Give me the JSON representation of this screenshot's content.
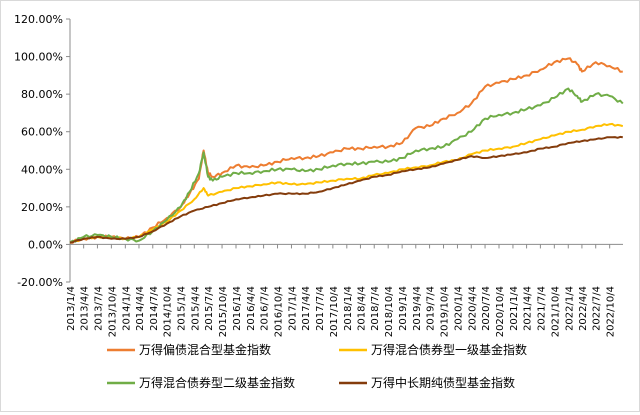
{
  "chart_data": {
    "type": "line",
    "ylim": [
      -0.2,
      1.2
    ],
    "y_ticks": [
      "120.00%",
      "100.00%",
      "80.00%",
      "60.00%",
      "40.00%",
      "20.00%",
      "0.00%",
      "-20.00%"
    ],
    "x_ticks": [
      "2013/1/4",
      "2013/4/4",
      "2013/7/4",
      "2013/10/4",
      "2014/1/4",
      "2014/4/4",
      "2014/7/4",
      "2014/10/4",
      "2015/1/4",
      "2015/4/4",
      "2015/7/4",
      "2015/10/4",
      "2016/1/4",
      "2016/4/4",
      "2016/7/4",
      "2016/10/4",
      "2017/1/4",
      "2017/4/4",
      "2017/7/4",
      "2017/10/4",
      "2018/1/4",
      "2018/4/4",
      "2018/7/4",
      "2018/10/4",
      "2019/1/4",
      "2019/4/4",
      "2019/7/4",
      "2019/10/4",
      "2020/1/4",
      "2020/4/4",
      "2020/7/4",
      "2020/10/4",
      "2021/1/4",
      "2021/4/4",
      "2021/7/4",
      "2021/10/4",
      "2022/1/4",
      "2022/4/4",
      "2022/7/4",
      "2022/10/4"
    ],
    "grid": false,
    "legend_position": "bottom",
    "series": [
      {
        "name": "万得偏债混合型基金指数",
        "color": "#ed7d31",
        "x": [
          "2013/1/4",
          "2013/4/4",
          "2013/7/4",
          "2013/10/4",
          "2014/1/4",
          "2014/4/4",
          "2014/7/4",
          "2014/10/4",
          "2015/1/4",
          "2015/3/4",
          "2015/5/4",
          "2015/6/4",
          "2015/7/4",
          "2015/8/4",
          "2015/10/4",
          "2016/1/4",
          "2016/4/4",
          "2016/7/4",
          "2016/10/4",
          "2017/1/4",
          "2017/4/4",
          "2017/7/4",
          "2017/10/4",
          "2018/1/4",
          "2018/4/4",
          "2018/7/4",
          "2018/10/4",
          "2019/1/4",
          "2019/4/4",
          "2019/7/4",
          "2019/10/4",
          "2020/1/4",
          "2020/4/4",
          "2020/7/4",
          "2020/10/4",
          "2021/1/4",
          "2021/4/4",
          "2021/7/4",
          "2021/10/4",
          "2022/1/4",
          "2022/3/4",
          "2022/4/4",
          "2022/7/4",
          "2022/10/4",
          "2022/12/30"
        ],
        "y": [
          0.01,
          0.03,
          0.04,
          0.04,
          0.03,
          0.04,
          0.09,
          0.14,
          0.2,
          0.27,
          0.35,
          0.5,
          0.38,
          0.36,
          0.38,
          0.42,
          0.41,
          0.42,
          0.44,
          0.46,
          0.46,
          0.47,
          0.49,
          0.51,
          0.51,
          0.52,
          0.52,
          0.54,
          0.62,
          0.63,
          0.67,
          0.7,
          0.75,
          0.84,
          0.86,
          0.88,
          0.9,
          0.93,
          0.97,
          0.99,
          0.96,
          0.92,
          0.97,
          0.95,
          0.92
        ]
      },
      {
        "name": "万得混合债券型一级基金指数",
        "color": "#ffc000",
        "x": [
          "2013/1/4",
          "2013/4/4",
          "2013/7/4",
          "2013/10/4",
          "2014/1/4",
          "2014/4/4",
          "2014/7/4",
          "2014/10/4",
          "2015/1/4",
          "2015/4/4",
          "2015/6/4",
          "2015/7/4",
          "2015/10/4",
          "2016/1/4",
          "2016/4/4",
          "2016/7/4",
          "2016/10/4",
          "2017/1/4",
          "2017/4/4",
          "2017/7/4",
          "2017/10/4",
          "2018/1/4",
          "2018/4/4",
          "2018/7/4",
          "2018/10/4",
          "2019/1/4",
          "2019/4/4",
          "2019/7/4",
          "2019/10/4",
          "2020/1/4",
          "2020/4/4",
          "2020/7/4",
          "2020/10/4",
          "2021/1/4",
          "2021/4/4",
          "2021/7/4",
          "2021/10/4",
          "2022/1/4",
          "2022/4/4",
          "2022/7/4",
          "2022/10/4",
          "2022/12/30"
        ],
        "y": [
          0.01,
          0.03,
          0.04,
          0.04,
          0.03,
          0.04,
          0.08,
          0.12,
          0.18,
          0.24,
          0.3,
          0.26,
          0.28,
          0.3,
          0.31,
          0.32,
          0.33,
          0.32,
          0.32,
          0.33,
          0.34,
          0.35,
          0.35,
          0.37,
          0.38,
          0.4,
          0.41,
          0.42,
          0.44,
          0.45,
          0.48,
          0.5,
          0.51,
          0.52,
          0.54,
          0.56,
          0.58,
          0.6,
          0.61,
          0.63,
          0.64,
          0.63
        ]
      },
      {
        "name": "万得混合债券型二级基金指数",
        "color": "#70ad47",
        "x": [
          "2013/1/4",
          "2013/4/4",
          "2013/7/4",
          "2013/10/4",
          "2014/1/4",
          "2014/4/4",
          "2014/7/4",
          "2014/10/4",
          "2015/1/4",
          "2015/3/4",
          "2015/5/4",
          "2015/6/4",
          "2015/7/4",
          "2015/8/4",
          "2015/10/4",
          "2016/1/4",
          "2016/4/4",
          "2016/7/4",
          "2016/10/4",
          "2017/1/4",
          "2017/4/4",
          "2017/7/4",
          "2017/10/4",
          "2018/1/4",
          "2018/4/4",
          "2018/7/4",
          "2018/10/4",
          "2019/1/4",
          "2019/4/4",
          "2019/7/4",
          "2019/10/4",
          "2020/1/4",
          "2020/4/4",
          "2020/7/4",
          "2020/10/4",
          "2021/1/4",
          "2021/4/4",
          "2021/7/4",
          "2021/10/4",
          "2022/1/4",
          "2022/3/4",
          "2022/4/4",
          "2022/7/4",
          "2022/10/4",
          "2022/12/30"
        ],
        "y": [
          0.01,
          0.04,
          0.05,
          0.04,
          0.03,
          0.02,
          0.07,
          0.13,
          0.2,
          0.28,
          0.38,
          0.49,
          0.36,
          0.34,
          0.36,
          0.38,
          0.38,
          0.39,
          0.4,
          0.4,
          0.39,
          0.4,
          0.42,
          0.43,
          0.43,
          0.44,
          0.44,
          0.46,
          0.5,
          0.51,
          0.52,
          0.56,
          0.6,
          0.67,
          0.69,
          0.7,
          0.72,
          0.74,
          0.78,
          0.83,
          0.79,
          0.76,
          0.8,
          0.79,
          0.75
        ]
      },
      {
        "name": "万得中长期纯债型基金指数",
        "color": "#843c0c",
        "x": [
          "2013/1/4",
          "2013/4/4",
          "2013/7/4",
          "2013/10/4",
          "2014/1/4",
          "2014/4/4",
          "2014/7/4",
          "2014/10/4",
          "2015/1/4",
          "2015/4/4",
          "2015/7/4",
          "2015/10/4",
          "2016/1/4",
          "2016/4/4",
          "2016/7/4",
          "2016/10/4",
          "2017/1/4",
          "2017/4/4",
          "2017/7/4",
          "2017/10/4",
          "2018/1/4",
          "2018/4/4",
          "2018/7/4",
          "2018/10/4",
          "2019/1/4",
          "2019/4/4",
          "2019/7/4",
          "2019/10/4",
          "2020/1/4",
          "2020/4/4",
          "2020/7/4",
          "2020/10/4",
          "2021/1/4",
          "2021/4/4",
          "2021/7/4",
          "2021/10/4",
          "2022/1/4",
          "2022/4/4",
          "2022/7/4",
          "2022/10/4",
          "2022/12/30"
        ],
        "y": [
          0.01,
          0.03,
          0.04,
          0.03,
          0.03,
          0.04,
          0.07,
          0.11,
          0.15,
          0.18,
          0.2,
          0.22,
          0.24,
          0.25,
          0.26,
          0.27,
          0.27,
          0.27,
          0.28,
          0.3,
          0.32,
          0.34,
          0.36,
          0.37,
          0.39,
          0.4,
          0.41,
          0.43,
          0.45,
          0.47,
          0.46,
          0.47,
          0.48,
          0.49,
          0.51,
          0.52,
          0.54,
          0.55,
          0.56,
          0.57,
          0.57
        ]
      }
    ]
  }
}
